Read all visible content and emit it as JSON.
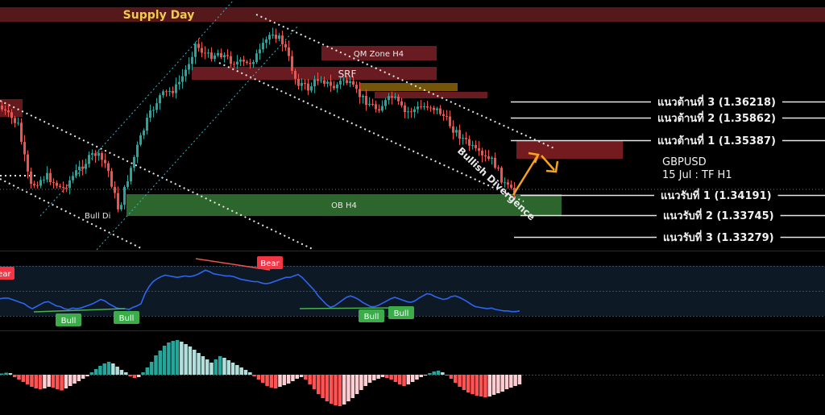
{
  "chart_data": {
    "type": "candlestick",
    "symbol": "GBPUSD",
    "date_timeframe": "15 Jul : TF H1",
    "zones": [
      {
        "label": "Supply Day",
        "color": "#5a1a1e",
        "label_color": "#f2c94c"
      },
      {
        "label": "QM Zone H4",
        "color": "#6e1e24",
        "label_color": "#e8e8e8"
      },
      {
        "label": "SRF",
        "color": "#6e1e24",
        "label_color": "#e8e8e8"
      },
      {
        "label": "",
        "color": "#7a5a0a",
        "label_color": "#e8e8e8"
      },
      {
        "label": "",
        "color": "#6e1e24",
        "label_color": "#e8e8e8"
      },
      {
        "label": "",
        "color": "#6a1a1e",
        "label_color": "#e8e8e8"
      },
      {
        "label": "",
        "color": "#7a1c22",
        "label_color": "#e8e8e8"
      },
      {
        "label": "OB H4",
        "color": "#2e6b2e",
        "label_color": "#e8e8e8"
      }
    ],
    "levels": [
      {
        "label": "แนวต้านที่ 3 (1.36218)",
        "price": 1.36218
      },
      {
        "label": "แนวต้านที่ 2 (1.35862)",
        "price": 1.35862
      },
      {
        "label": "แนวต้านที่ 1 (1.35387)",
        "price": 1.35387
      },
      {
        "label": "แนวรับที่ 1 (1.34191)",
        "price": 1.34191
      },
      {
        "label": "แนวรับที่ 2 (1.33745)",
        "price": 1.33745
      },
      {
        "label": "แนวรับที่ 3 (1.33279)",
        "price": 1.33279
      }
    ],
    "annotations": {
      "bull_div": "Bull Di",
      "bullish_divergence": "Bullish Divergence"
    },
    "oscillator": {
      "color": "#2f64f0",
      "values": [
        54,
        55,
        55,
        53,
        51,
        49,
        47,
        43,
        40,
        43,
        46,
        49,
        50,
        47,
        44,
        43,
        40,
        39,
        41,
        40,
        41,
        43,
        45,
        47,
        50,
        53,
        51,
        47,
        44,
        41,
        40,
        40,
        39,
        42,
        44,
        47,
        61,
        71,
        78,
        82,
        85,
        87,
        86,
        85,
        84,
        85,
        86,
        85,
        86,
        88,
        91,
        94,
        92,
        89,
        88,
        87,
        86,
        86,
        85,
        83,
        81,
        80,
        79,
        78,
        78,
        76,
        75,
        76,
        78,
        80,
        82,
        84,
        84,
        86,
        88,
        84,
        78,
        72,
        66,
        58,
        52,
        46,
        42,
        44,
        48,
        52,
        56,
        58,
        56,
        53,
        49,
        46,
        43,
        43,
        45,
        48,
        51,
        54,
        56,
        54,
        52,
        50,
        49,
        51,
        55,
        58,
        61,
        60,
        57,
        55,
        53,
        54,
        57,
        58,
        56,
        53,
        50,
        46,
        43,
        42,
        41,
        40,
        41,
        39,
        38,
        37,
        37,
        36,
        36,
        37
      ],
      "labels": [
        {
          "text": "Bear",
          "type": "bear"
        },
        {
          "text": "Bull",
          "type": "bull"
        },
        {
          "text": "Bull",
          "type": "bull"
        },
        {
          "text": "Bear",
          "type": "bear"
        },
        {
          "text": "Bull",
          "type": "bull"
        },
        {
          "text": "Bull",
          "type": "bull"
        }
      ]
    },
    "histogram": {
      "values": [
        0.3,
        0.5,
        0.4,
        -0.6,
        -1.2,
        -1.8,
        -2.4,
        -3.0,
        -3.4,
        -3.6,
        -3.4,
        -3.0,
        -3.2,
        -3.6,
        -3.9,
        -3.4,
        -2.8,
        -2.2,
        -1.6,
        -1.0,
        -0.4,
        0.6,
        1.4,
        2.2,
        2.8,
        3.2,
        2.8,
        2.0,
        1.2,
        0.6,
        -0.4,
        -0.8,
        -0.6,
        0.6,
        1.8,
        3.2,
        4.8,
        6.0,
        7.2,
        8.0,
        8.4,
        8.6,
        8.2,
        7.6,
        7.0,
        6.2,
        5.4,
        4.6,
        3.8,
        3.0,
        3.8,
        4.6,
        4.2,
        3.6,
        3.0,
        2.4,
        1.8,
        1.2,
        0.6,
        -0.4,
        -1.2,
        -2.0,
        -2.8,
        -3.2,
        -3.4,
        -3.0,
        -2.6,
        -2.2,
        -1.6,
        -1.0,
        -0.6,
        -1.2,
        -2.4,
        -3.6,
        -4.8,
        -5.8,
        -6.6,
        -7.2,
        -7.6,
        -7.8,
        -7.4,
        -6.6,
        -5.8,
        -4.8,
        -3.8,
        -2.8,
        -2.0,
        -1.4,
        -1.0,
        -0.6,
        -0.8,
        -1.2,
        -1.8,
        -2.4,
        -2.8,
        -2.4,
        -1.8,
        -1.2,
        -0.6,
        -0.2,
        0.4,
        0.8,
        1.0,
        0.6,
        -0.2,
        -1.0,
        -2.0,
        -3.0,
        -3.8,
        -4.4,
        -4.8,
        -5.2,
        -5.4,
        -5.6,
        -5.4,
        -5.0,
        -4.6,
        -4.2,
        -3.6,
        -3.2,
        -2.8,
        -2.4
      ]
    }
  }
}
